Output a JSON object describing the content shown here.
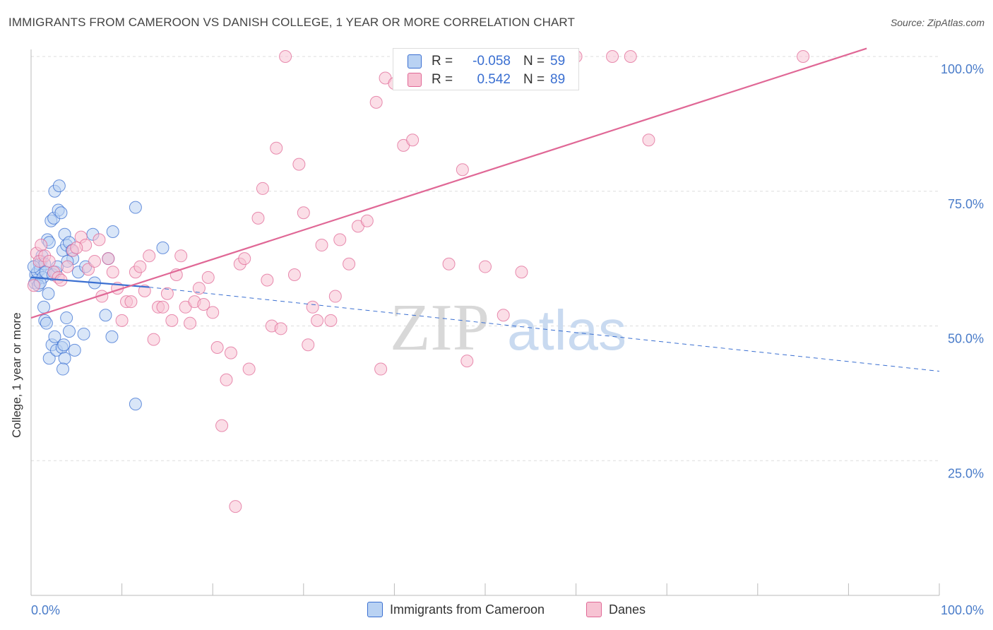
{
  "title": "IMMIGRANTS FROM CAMEROON VS DANISH COLLEGE, 1 YEAR OR MORE CORRELATION CHART",
  "source": "Source: ZipAtlas.com",
  "watermark": {
    "zip": "ZIP",
    "atlas": "atlas"
  },
  "colors": {
    "blue": "#3a6fd1",
    "blue_fill": "#b9d2f3",
    "pink": "#e06896",
    "pink_fill": "#f7c3d3",
    "grid": "#dddddd"
  },
  "stat_legend": {
    "rows": [
      {
        "r_label": "R =",
        "r_value": "-0.058",
        "n_label": "N =",
        "n_value": "59"
      },
      {
        "r_label": "R =",
        "r_value": "0.542",
        "n_label": "N =",
        "n_value": "89"
      }
    ]
  },
  "legend": {
    "blue_label": "Immigrants from Cameroon",
    "pink_label": "Danes"
  },
  "chart_data": {
    "type": "scatter",
    "xlabel": "",
    "ylabel": "College, 1 year or more",
    "xlim": [
      0,
      100
    ],
    "ylim": [
      0,
      105
    ],
    "x_tick_labels": [
      "0.0%",
      "100.0%"
    ],
    "y_ticks": [
      25,
      50,
      75,
      100
    ],
    "y_tick_labels": [
      "25.0%",
      "50.0%",
      "75.0%",
      "100.0%"
    ],
    "grid": true,
    "legend_position": "bottom",
    "series": [
      {
        "name": "Immigrants from Cameroon",
        "color": "#3a6fd1",
        "r": -0.058,
        "n": 59,
        "trend": {
          "x": [
            0,
            13
          ],
          "y": [
            59.0,
            57.2
          ],
          "dashed_extension_to_x": 100,
          "dashed_end_y": 41.6
        },
        "points": [
          [
            0.5,
            59.5
          ],
          [
            0.6,
            58.5
          ],
          [
            0.7,
            60.0
          ],
          [
            0.4,
            58.0
          ],
          [
            0.9,
            61.5
          ],
          [
            1.0,
            60.5
          ],
          [
            1.1,
            62.0
          ],
          [
            1.2,
            63.0
          ],
          [
            1.3,
            59.0
          ],
          [
            1.5,
            61.5
          ],
          [
            1.6,
            60.0
          ],
          [
            1.8,
            66.0
          ],
          [
            2.0,
            65.5
          ],
          [
            2.2,
            69.5
          ],
          [
            2.5,
            70.0
          ],
          [
            2.6,
            75.0
          ],
          [
            3.0,
            71.5
          ],
          [
            3.1,
            76.0
          ],
          [
            3.3,
            71.0
          ],
          [
            3.5,
            64.0
          ],
          [
            3.7,
            67.0
          ],
          [
            3.9,
            65.0
          ],
          [
            4.2,
            65.5
          ],
          [
            4.5,
            64.0
          ],
          [
            4.6,
            62.5
          ],
          [
            2.7,
            60.0
          ],
          [
            2.4,
            59.5
          ],
          [
            1.4,
            53.5
          ],
          [
            1.5,
            51.0
          ],
          [
            1.7,
            50.5
          ],
          [
            2.0,
            44.0
          ],
          [
            2.3,
            46.5
          ],
          [
            2.6,
            48.0
          ],
          [
            2.8,
            45.5
          ],
          [
            3.4,
            46.0
          ],
          [
            3.6,
            46.5
          ],
          [
            3.7,
            44.0
          ],
          [
            3.9,
            51.5
          ],
          [
            4.2,
            49.0
          ],
          [
            4.8,
            45.5
          ],
          [
            5.8,
            48.5
          ],
          [
            3.5,
            42.0
          ],
          [
            6.8,
            67.0
          ],
          [
            8.5,
            62.5
          ],
          [
            8.2,
            52.0
          ],
          [
            8.9,
            48.0
          ],
          [
            9.0,
            67.5
          ],
          [
            11.5,
            72.0
          ],
          [
            11.5,
            35.5
          ],
          [
            14.5,
            64.5
          ],
          [
            0.8,
            57.5
          ],
          [
            1.9,
            56.0
          ],
          [
            0.3,
            61.0
          ],
          [
            1.0,
            58.0
          ],
          [
            2.9,
            61.0
          ],
          [
            4.0,
            62.0
          ],
          [
            5.2,
            60.0
          ],
          [
            6.0,
            61.0
          ],
          [
            7.0,
            58.0
          ]
        ]
      },
      {
        "name": "Danes",
        "color": "#e06896",
        "r": 0.542,
        "n": 89,
        "trend": {
          "x": [
            0,
            92
          ],
          "y": [
            51.5,
            101.5
          ]
        },
        "points": [
          [
            0.3,
            57.5
          ],
          [
            0.6,
            63.5
          ],
          [
            0.9,
            62.0
          ],
          [
            1.1,
            65.0
          ],
          [
            1.5,
            63.0
          ],
          [
            2.0,
            62.0
          ],
          [
            2.5,
            60.0
          ],
          [
            3.0,
            59.0
          ],
          [
            3.3,
            58.5
          ],
          [
            4.0,
            61.0
          ],
          [
            4.6,
            64.0
          ],
          [
            5.5,
            66.5
          ],
          [
            6.0,
            65.0
          ],
          [
            6.3,
            60.5
          ],
          [
            7.0,
            62.0
          ],
          [
            7.5,
            66.0
          ],
          [
            7.8,
            55.5
          ],
          [
            8.5,
            62.5
          ],
          [
            9.0,
            60.0
          ],
          [
            9.5,
            57.0
          ],
          [
            10.0,
            51.0
          ],
          [
            10.5,
            54.5
          ],
          [
            11.0,
            54.5
          ],
          [
            11.5,
            60.0
          ],
          [
            12.0,
            61.0
          ],
          [
            12.5,
            56.5
          ],
          [
            13.0,
            63.0
          ],
          [
            13.5,
            47.5
          ],
          [
            14.0,
            53.5
          ],
          [
            14.5,
            53.5
          ],
          [
            15.0,
            56.0
          ],
          [
            15.5,
            51.0
          ],
          [
            16.0,
            59.5
          ],
          [
            16.5,
            63.0
          ],
          [
            17.0,
            53.5
          ],
          [
            17.5,
            50.5
          ],
          [
            18.0,
            54.5
          ],
          [
            18.5,
            57.0
          ],
          [
            19.0,
            54.0
          ],
          [
            19.5,
            59.0
          ],
          [
            20.0,
            52.5
          ],
          [
            20.5,
            46.0
          ],
          [
            21.0,
            31.5
          ],
          [
            21.5,
            40.0
          ],
          [
            22.0,
            45.0
          ],
          [
            22.5,
            16.5
          ],
          [
            23.0,
            61.5
          ],
          [
            23.5,
            62.5
          ],
          [
            24.0,
            42.0
          ],
          [
            25.0,
            70.0
          ],
          [
            25.5,
            75.5
          ],
          [
            26.0,
            58.5
          ],
          [
            26.5,
            50.0
          ],
          [
            27.0,
            83.0
          ],
          [
            27.5,
            49.5
          ],
          [
            28.0,
            100.0
          ],
          [
            29.0,
            59.5
          ],
          [
            29.5,
            80.0
          ],
          [
            30.0,
            71.0
          ],
          [
            30.5,
            46.5
          ],
          [
            31.0,
            53.5
          ],
          [
            31.5,
            51.0
          ],
          [
            32.0,
            65.0
          ],
          [
            33.0,
            51.0
          ],
          [
            33.5,
            55.5
          ],
          [
            34.0,
            66.0
          ],
          [
            35.0,
            61.5
          ],
          [
            36.0,
            68.5
          ],
          [
            37.0,
            69.5
          ],
          [
            38.0,
            91.5
          ],
          [
            38.5,
            42.0
          ],
          [
            39.0,
            96.0
          ],
          [
            40.0,
            95.0
          ],
          [
            41.0,
            83.5
          ],
          [
            42.0,
            84.5
          ],
          [
            45.0,
            100.0
          ],
          [
            46.0,
            61.5
          ],
          [
            47.5,
            79.0
          ],
          [
            48.0,
            43.5
          ],
          [
            49.0,
            100.0
          ],
          [
            50.0,
            61.0
          ],
          [
            52.0,
            52.0
          ],
          [
            54.0,
            60.0
          ],
          [
            60.0,
            100.0
          ],
          [
            64.0,
            100.0
          ],
          [
            66.0,
            100.0
          ],
          [
            68.0,
            84.5
          ],
          [
            85.0,
            100.0
          ],
          [
            5.0,
            64.5
          ]
        ]
      }
    ]
  }
}
